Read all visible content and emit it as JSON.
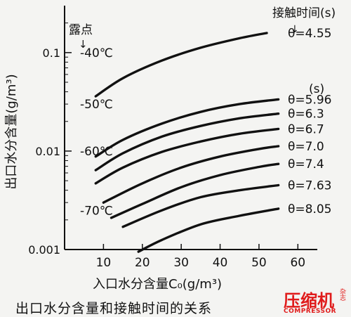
{
  "chart_data": {
    "type": "line",
    "xlabel": "入口水分含量C₀(g/m³)",
    "ylabel": "出口水分含量(g/m³)",
    "xlim": [
      0,
      65
    ],
    "ylim": [
      0.001,
      0.3
    ],
    "y_scale": "log",
    "x_ticks": [
      10,
      20,
      30,
      40,
      50,
      60
    ],
    "y_ticks": [
      {
        "value": 0.001,
        "label": "0.001"
      },
      {
        "value": 0.01,
        "label": "0.01"
      },
      {
        "value": 0.1,
        "label": "0.1"
      }
    ],
    "dew_point_title": "露点",
    "dew_point_arrow": "↓",
    "dew_points": [
      {
        "label": "-40℃",
        "y": 0.1
      },
      {
        "label": "-50℃",
        "y": 0.03
      },
      {
        "label": "-60℃",
        "y": 0.01
      },
      {
        "label": "-70℃",
        "y": 0.0025
      }
    ],
    "contact_time_title": "接触时间(s)",
    "contact_time_arrow": "↓",
    "contact_time_unit": "(s)",
    "series": [
      {
        "name": "θ=4.55",
        "x": [
          8,
          15,
          25,
          35,
          45,
          52
        ],
        "y": [
          0.036,
          0.055,
          0.083,
          0.112,
          0.14,
          0.158
        ]
      },
      {
        "name": "θ=5.96",
        "x": [
          8,
          15,
          25,
          35,
          45,
          55
        ],
        "y": [
          0.0088,
          0.013,
          0.019,
          0.025,
          0.03,
          0.0335
        ]
      },
      {
        "name": "θ=6.3",
        "x": [
          8,
          15,
          25,
          35,
          45,
          55
        ],
        "y": [
          0.0064,
          0.0095,
          0.014,
          0.018,
          0.0215,
          0.024
        ]
      },
      {
        "name": "θ=6.7",
        "x": [
          8,
          15,
          25,
          35,
          45,
          55
        ],
        "y": [
          0.0047,
          0.0068,
          0.0098,
          0.0125,
          0.015,
          0.0168
        ]
      },
      {
        "name": "θ=7.0",
        "x": [
          10,
          20,
          30,
          40,
          50,
          55
        ],
        "y": [
          0.003,
          0.0047,
          0.0068,
          0.0088,
          0.0105,
          0.0112
        ]
      },
      {
        "name": "θ=7.4",
        "x": [
          12,
          20,
          30,
          40,
          50,
          55
        ],
        "y": [
          0.0021,
          0.0029,
          0.0043,
          0.0057,
          0.0069,
          0.0074
        ]
      },
      {
        "name": "θ=7.63",
        "x": [
          15,
          25,
          35,
          45,
          55
        ],
        "y": [
          0.0017,
          0.0025,
          0.0034,
          0.004,
          0.0045
        ]
      },
      {
        "name": "θ=8.05",
        "x": [
          19,
          25,
          35,
          45,
          55
        ],
        "y": [
          0.00095,
          0.00125,
          0.0018,
          0.0022,
          0.0026
        ]
      }
    ]
  },
  "caption": "出口水分含量和接触时间的关系",
  "watermark": {
    "main": "压缩机",
    "side": "杂志",
    "sub": "COMPRESSOR"
  },
  "colors": {
    "ink": "#111111",
    "brand": "#e01b1b",
    "background": "#f4f4f2"
  }
}
